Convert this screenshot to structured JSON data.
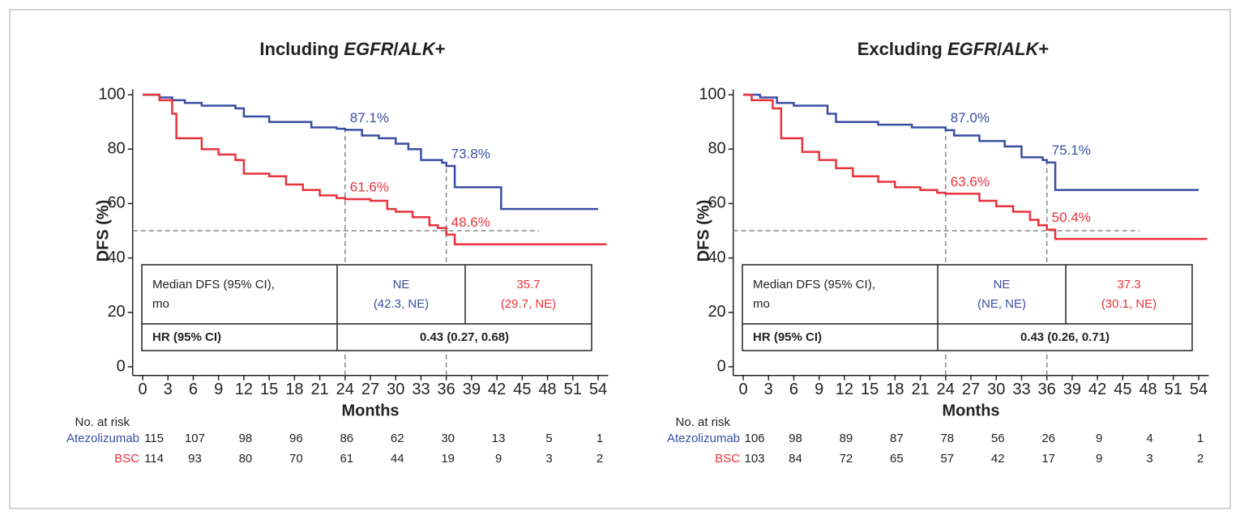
{
  "chart_data": [
    {
      "type": "line",
      "step": true,
      "title": [
        {
          "text": "Including "
        },
        {
          "text": "EGFR",
          "italic": true
        },
        {
          "text": "/"
        },
        {
          "text": "ALK",
          "italic": true
        },
        {
          "text": "+"
        }
      ],
      "y_label": "DFS (%)",
      "x_label": "Months",
      "xlim": [
        -0.8,
        55.2
      ],
      "ylim": [
        -2,
        102
      ],
      "xticks": [
        0,
        3,
        6,
        9,
        12,
        15,
        18,
        21,
        24,
        27,
        30,
        33,
        36,
        39,
        42,
        45,
        48,
        51,
        54
      ],
      "yticks": [
        0,
        20,
        40,
        60,
        80,
        100
      ],
      "series": [
        {
          "name": "Atezolizumab",
          "color": "#3b4ea3",
          "x": [
            0,
            2,
            3.5,
            5,
            7,
            11,
            12,
            15,
            20,
            23,
            24,
            26,
            28,
            30,
            31.5,
            33,
            35.5,
            36,
            37,
            42.5,
            54
          ],
          "values": [
            100,
            99,
            98,
            97,
            96,
            95,
            92,
            90,
            88,
            87.5,
            87.1,
            85,
            84,
            82,
            80,
            76,
            75,
            73.8,
            66,
            58,
            58
          ],
          "at_risk": [
            115,
            107,
            98,
            96,
            86,
            62,
            30,
            13,
            5,
            1
          ]
        },
        {
          "name": "BSC",
          "color": "#e8323c",
          "x": [
            0,
            2,
            3.5,
            4,
            7,
            9,
            11,
            12,
            15,
            17,
            19,
            21,
            23,
            24,
            27,
            29,
            30,
            32,
            34,
            35,
            36,
            37,
            55
          ],
          "values": [
            100,
            98,
            93,
            84,
            80,
            78,
            76,
            71,
            70,
            67,
            65,
            63,
            62,
            61.6,
            61,
            58,
            57,
            55,
            52,
            51,
            48.6,
            45,
            45
          ],
          "at_risk": [
            114,
            93,
            80,
            70,
            61,
            44,
            19,
            9,
            3,
            2
          ]
        }
      ],
      "annotations": [
        {
          "x": 24,
          "y": 87.1,
          "label": "87.1%",
          "color": "#3b4ea3"
        },
        {
          "x": 36,
          "y": 73.8,
          "label": "73.8%",
          "color": "#3b4ea3"
        },
        {
          "x": 24,
          "y": 61.6,
          "label": "61.6%",
          "color": "#e8323c"
        },
        {
          "x": 36,
          "y": 48.6,
          "label": "48.6%",
          "color": "#e8323c"
        }
      ],
      "hline": {
        "y": 50,
        "x_end": 47
      },
      "table": {
        "median_label": [
          "Median DFS (95% CI),",
          "mo"
        ],
        "median": [
          [
            "NE",
            "(42.3, NE)"
          ],
          [
            "35.7",
            "(29.7, NE)"
          ]
        ],
        "hr_label": "HR (95% CI)",
        "hr": "0.43 (0.27, 0.68)"
      },
      "risk_title": "No. at risk",
      "risk_x": [
        0,
        6,
        12,
        18,
        24,
        30,
        36,
        42,
        48,
        54
      ]
    },
    {
      "type": "line",
      "step": true,
      "title": [
        {
          "text": "Excluding "
        },
        {
          "text": "EGFR",
          "italic": true
        },
        {
          "text": "/"
        },
        {
          "text": "ALK",
          "italic": true
        },
        {
          "text": "+"
        }
      ],
      "y_label": "DFS (%)",
      "x_label": "Months",
      "xlim": [
        -0.8,
        55.2
      ],
      "ylim": [
        -2,
        102
      ],
      "xticks": [
        0,
        3,
        6,
        9,
        12,
        15,
        18,
        21,
        24,
        27,
        30,
        33,
        36,
        39,
        42,
        45,
        48,
        51,
        54
      ],
      "yticks": [
        0,
        20,
        40,
        60,
        80,
        100
      ],
      "series": [
        {
          "name": "Atezolizumab",
          "color": "#3b4ea3",
          "x": [
            0,
            2,
            4,
            6,
            10,
            11,
            16,
            20,
            24,
            25,
            28,
            31,
            33,
            35.5,
            36,
            37,
            54
          ],
          "values": [
            100,
            99,
            97,
            96,
            93,
            90,
            89,
            88,
            87.0,
            85,
            83,
            81,
            77,
            76,
            75.1,
            65,
            65
          ],
          "at_risk": [
            106,
            98,
            89,
            87,
            78,
            56,
            26,
            9,
            4,
            1
          ]
        },
        {
          "name": "BSC",
          "color": "#e8323c",
          "x": [
            0,
            1,
            3.5,
            4.5,
            7,
            9,
            11,
            13,
            16,
            18,
            21,
            23,
            24,
            28,
            30,
            32,
            34,
            35,
            36,
            37,
            55
          ],
          "values": [
            100,
            98,
            95,
            84,
            79,
            76,
            73,
            70,
            68,
            66,
            65,
            64,
            63.6,
            61,
            59,
            57,
            54,
            52,
            50.4,
            47,
            47
          ],
          "at_risk": [
            103,
            84,
            72,
            65,
            57,
            42,
            17,
            9,
            3,
            2
          ]
        }
      ],
      "annotations": [
        {
          "x": 24,
          "y": 87.0,
          "label": "87.0%",
          "color": "#3b4ea3"
        },
        {
          "x": 36,
          "y": 75.1,
          "label": "75.1%",
          "color": "#3b4ea3"
        },
        {
          "x": 24,
          "y": 63.6,
          "label": "63.6%",
          "color": "#e8323c"
        },
        {
          "x": 36,
          "y": 50.4,
          "label": "50.4%",
          "color": "#e8323c"
        }
      ],
      "hline": {
        "y": 50,
        "x_end": 47
      },
      "table": {
        "median_label": [
          "Median DFS (95% CI),",
          "mo"
        ],
        "median": [
          [
            "NE",
            "(NE, NE)"
          ],
          [
            "37.3",
            "(30.1, NE)"
          ]
        ],
        "hr_label": "HR (95% CI)",
        "hr": "0.43 (0.26, 0.71)"
      },
      "risk_title": "No. at risk",
      "risk_x": [
        0,
        6,
        12,
        18,
        24,
        30,
        36,
        42,
        48,
        54
      ]
    }
  ]
}
